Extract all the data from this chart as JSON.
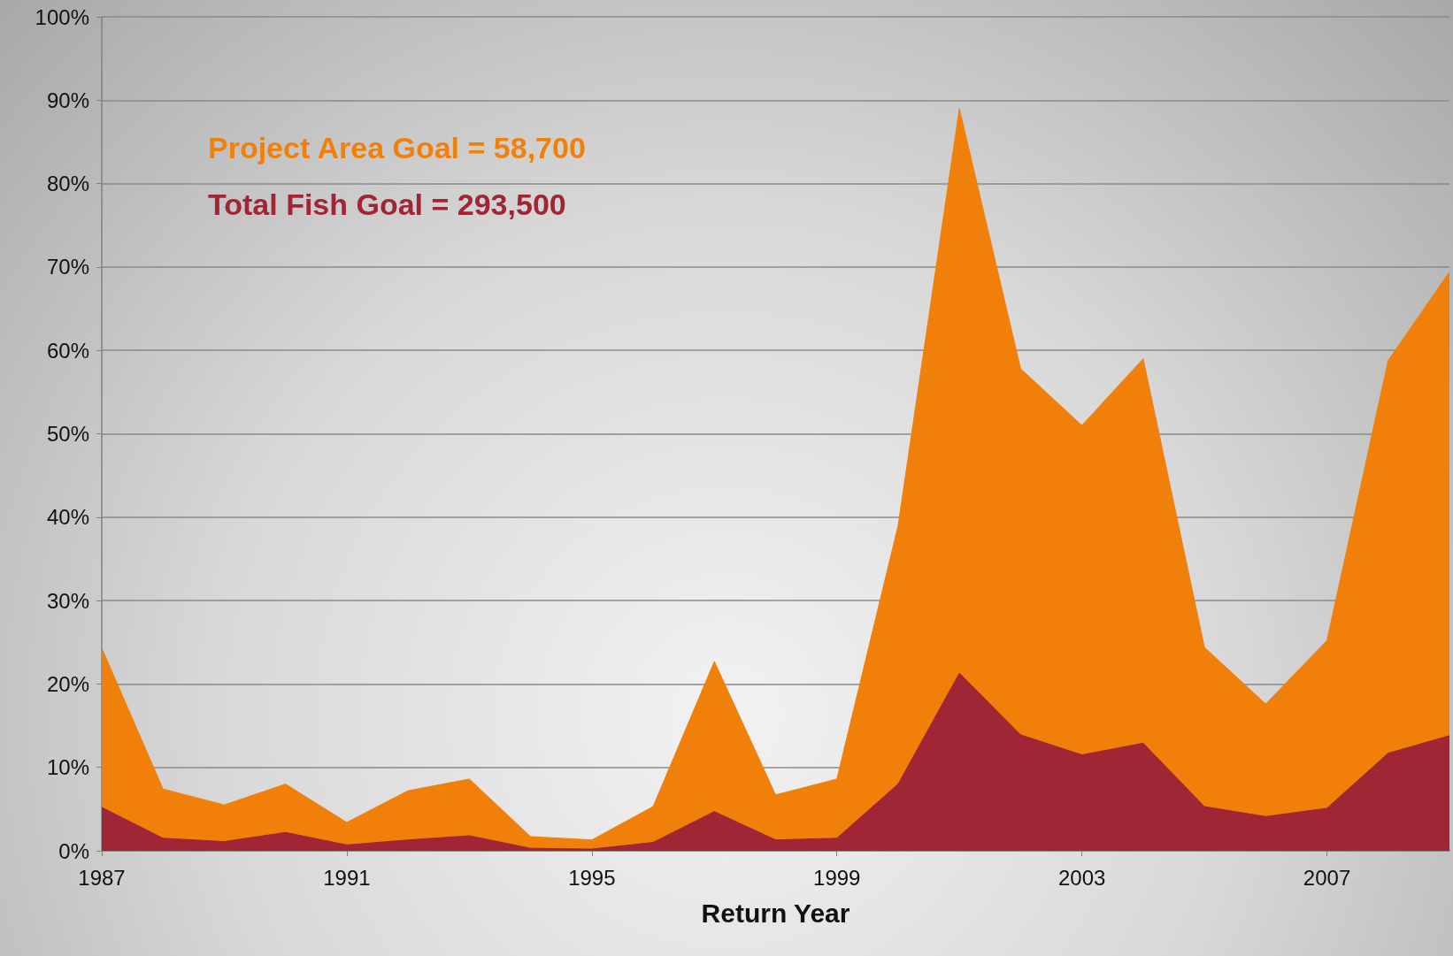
{
  "chart_data": {
    "type": "area",
    "xlabel": "Return Year",
    "x": [
      1987,
      1988,
      1989,
      1990,
      1991,
      1992,
      1993,
      1994,
      1995,
      1996,
      1997,
      1998,
      1999,
      2000,
      2001,
      2002,
      2003,
      2004,
      2005,
      2006,
      2007,
      2008,
      2009
    ],
    "series": [
      {
        "name": "Project Area Goal = 58,700",
        "color": "#f0800a",
        "values": [
          24.3,
          7.4,
          5.5,
          8.0,
          3.4,
          7.2,
          8.6,
          1.7,
          1.3,
          5.3,
          22.7,
          6.7,
          8.6,
          39,
          89,
          57.8,
          51,
          59,
          24.4,
          17.6,
          25.2,
          58.8,
          69.4
        ]
      },
      {
        "name": "Total Fish Goal = 293,500",
        "color": "#a02535",
        "values": [
          5.2,
          1.5,
          1.1,
          2.2,
          0.7,
          1.3,
          1.8,
          0.3,
          0.2,
          1.0,
          4.7,
          1.3,
          1.5,
          8.0,
          21.3,
          13.9,
          11.5,
          12.9,
          5.3,
          4.1,
          5.1,
          11.7,
          13.8
        ]
      }
    ],
    "xlim": [
      1987,
      2009
    ],
    "xticks": [
      1987,
      1991,
      1995,
      1999,
      2003,
      2007
    ],
    "ylim": [
      0,
      100
    ],
    "yticks": [
      {
        "value": 0,
        "label": "0%"
      },
      {
        "value": 10,
        "label": "10%"
      },
      {
        "value": 20,
        "label": "20%"
      },
      {
        "value": 30,
        "label": "30%"
      },
      {
        "value": 40,
        "label": "40%"
      },
      {
        "value": 50,
        "label": "50%"
      },
      {
        "value": 60,
        "label": "60%"
      },
      {
        "value": 70,
        "label": "70%"
      },
      {
        "value": 80,
        "label": "80%"
      },
      {
        "value": 90,
        "label": "90%"
      },
      {
        "value": 100,
        "label": "100%"
      }
    ],
    "grid": "y",
    "legend": "top left"
  }
}
